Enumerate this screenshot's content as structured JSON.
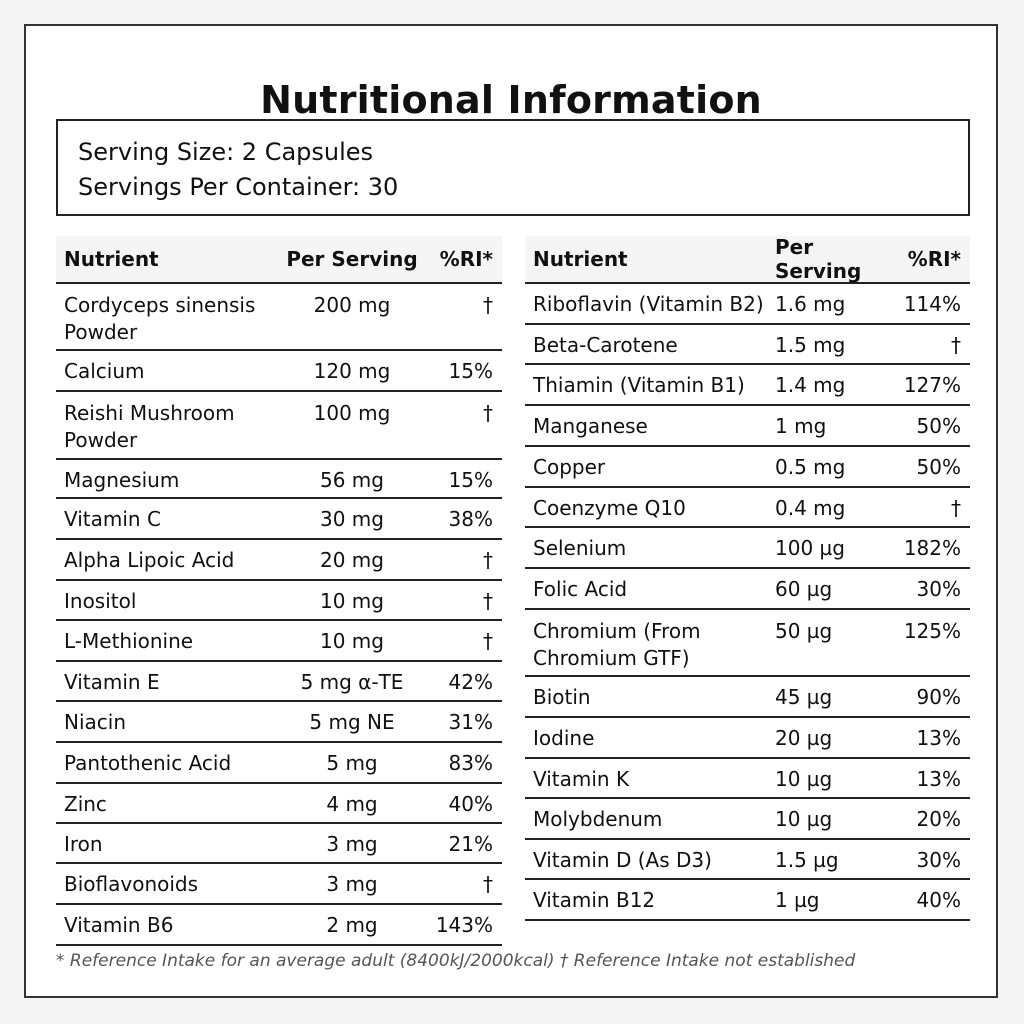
{
  "title": "Nutritional Information",
  "serving": {
    "size": "Serving Size: 2 Capsules",
    "per_container": "Servings Per Container: 30"
  },
  "headers": {
    "nutrient": "Nutrient",
    "per_serving": "Per Serving",
    "ri": "%RI*"
  },
  "left_rows": [
    {
      "nutrient": "Cordyceps sinensis Powder",
      "amount": "200 mg",
      "ri": "†"
    },
    {
      "nutrient": "Calcium",
      "amount": "120 mg",
      "ri": "15%"
    },
    {
      "nutrient": "Reishi Mushroom Powder",
      "amount": "100 mg",
      "ri": "†"
    },
    {
      "nutrient": "Magnesium",
      "amount": "56 mg",
      "ri": "15%"
    },
    {
      "nutrient": "Vitamin C",
      "amount": "30 mg",
      "ri": "38%"
    },
    {
      "nutrient": "Alpha Lipoic Acid",
      "amount": "20 mg",
      "ri": "†"
    },
    {
      "nutrient": "Inositol",
      "amount": "10 mg",
      "ri": "†"
    },
    {
      "nutrient": "L-Methionine",
      "amount": "10 mg",
      "ri": "†"
    },
    {
      "nutrient": "Vitamin E",
      "amount": "5 mg α-TE",
      "ri": "42%"
    },
    {
      "nutrient": "Niacin",
      "amount": "5 mg NE",
      "ri": "31%"
    },
    {
      "nutrient": "Pantothenic Acid",
      "amount": "5 mg",
      "ri": "83%"
    },
    {
      "nutrient": "Zinc",
      "amount": "4 mg",
      "ri": "40%"
    },
    {
      "nutrient": "Iron",
      "amount": "3 mg",
      "ri": "21%"
    },
    {
      "nutrient": "Bioflavonoids",
      "amount": "3 mg",
      "ri": "†"
    },
    {
      "nutrient": "Vitamin B6",
      "amount": "2 mg",
      "ri": "143%"
    }
  ],
  "right_rows": [
    {
      "nutrient": "Riboflavin (Vitamin B2)",
      "amount": "1.6 mg",
      "ri": "114%"
    },
    {
      "nutrient": "Beta-Carotene",
      "amount": "1.5 mg",
      "ri": "†"
    },
    {
      "nutrient": "Thiamin (Vitamin B1)",
      "amount": "1.4 mg",
      "ri": "127%"
    },
    {
      "nutrient": "Manganese",
      "amount": "1 mg",
      "ri": "50%"
    },
    {
      "nutrient": "Copper",
      "amount": "0.5 mg",
      "ri": "50%"
    },
    {
      "nutrient": "Coenzyme Q10",
      "amount": "0.4 mg",
      "ri": "†"
    },
    {
      "nutrient": "Selenium",
      "amount": "100 µg",
      "ri": "182%"
    },
    {
      "nutrient": "Folic Acid",
      "amount": "60 µg",
      "ri": "30%"
    },
    {
      "nutrient": "Chromium (From Chromium GTF)",
      "amount": "50 µg",
      "ri": "125%"
    },
    {
      "nutrient": "Biotin",
      "amount": "45 µg",
      "ri": "90%"
    },
    {
      "nutrient": "Iodine",
      "amount": "20 µg",
      "ri": "13%"
    },
    {
      "nutrient": "Vitamin K",
      "amount": "10 µg",
      "ri": "13%"
    },
    {
      "nutrient": "Molybdenum",
      "amount": "10 µg",
      "ri": "20%"
    },
    {
      "nutrient": "Vitamin D (As D3)",
      "amount": "1.5 µg",
      "ri": "30%"
    },
    {
      "nutrient": "Vitamin B12",
      "amount": "1 µg",
      "ri": "40%"
    }
  ],
  "footnote": "* Reference Intake for an average adult (8400kJ/2000kcal) † Reference Intake not established"
}
